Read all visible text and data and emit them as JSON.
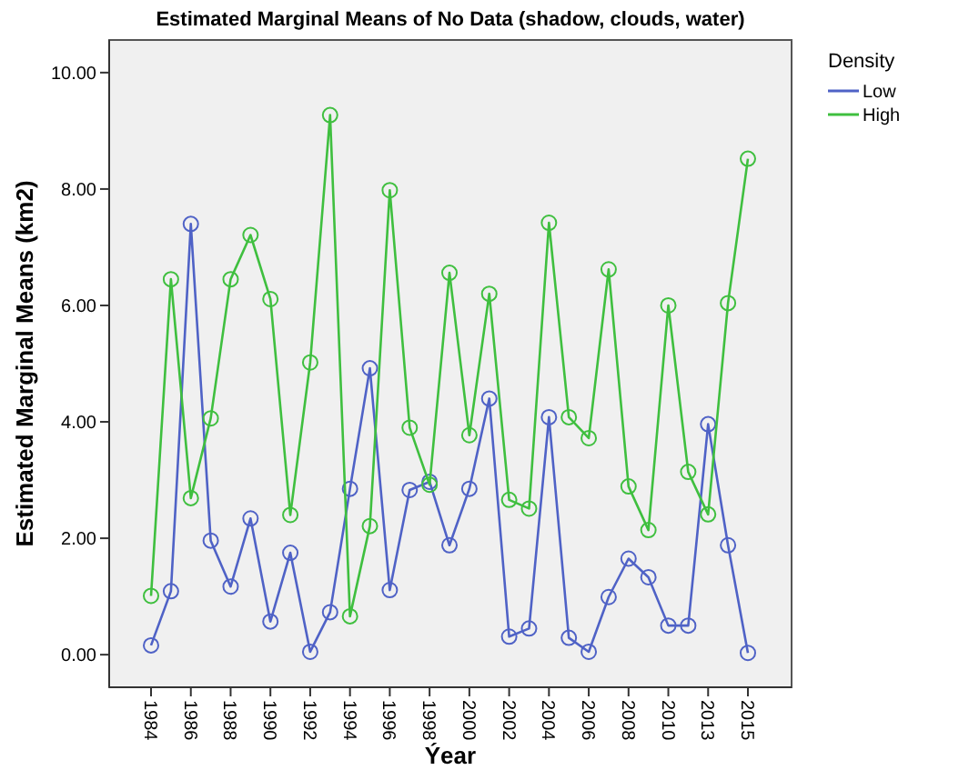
{
  "chart_data": {
    "type": "line",
    "title": "Estimated Marginal Means of No Data (shadow, clouds, water)",
    "xlabel": "Ýear",
    "ylabel": "Estimated Marginal Means (km2)",
    "legend_title": "Density",
    "legend": "top right",
    "marker": "circle",
    "line_style": "solid",
    "grid": false,
    "categories": [
      "1984",
      null,
      "1986",
      null,
      "1988",
      null,
      "1990",
      null,
      "1992",
      null,
      "1994",
      null,
      "1996",
      null,
      "1998",
      null,
      "2000",
      null,
      "2002",
      null,
      "2004",
      null,
      "2006",
      null,
      "2008",
      null,
      "2010",
      null,
      "2013",
      null,
      "2015"
    ],
    "ylim": [
      -0.56,
      10.56
    ],
    "yticks": [
      {
        "value": 0,
        "label": "0.00"
      },
      {
        "value": 2,
        "label": "2.00"
      },
      {
        "value": 4,
        "label": "4.00"
      },
      {
        "value": 6,
        "label": "6.00"
      },
      {
        "value": 8,
        "label": "8.00"
      },
      {
        "value": 10,
        "label": "10.00"
      }
    ],
    "series": [
      {
        "name": "Low",
        "color": "#4f62c6",
        "values": [
          0.16,
          1.09,
          7.4,
          1.96,
          1.17,
          2.34,
          0.57,
          1.75,
          0.05,
          0.73,
          2.85,
          4.92,
          1.11,
          2.83,
          2.97,
          1.88,
          2.85,
          4.4,
          0.31,
          0.45,
          4.08,
          0.29,
          0.05,
          0.99,
          1.65,
          1.33,
          0.5,
          0.5,
          3.96,
          1.88,
          0.03
        ]
      },
      {
        "name": "High",
        "color": "#3fbf3f",
        "values": [
          1.01,
          6.45,
          2.69,
          4.06,
          6.45,
          7.21,
          6.11,
          2.4,
          5.02,
          9.27,
          0.66,
          2.21,
          7.98,
          3.9,
          2.92,
          6.56,
          3.77,
          6.2,
          2.66,
          2.51,
          7.42,
          4.08,
          3.72,
          6.62,
          2.89,
          2.14,
          6.0,
          3.14,
          2.41,
          6.04,
          8.52
        ]
      }
    ]
  }
}
